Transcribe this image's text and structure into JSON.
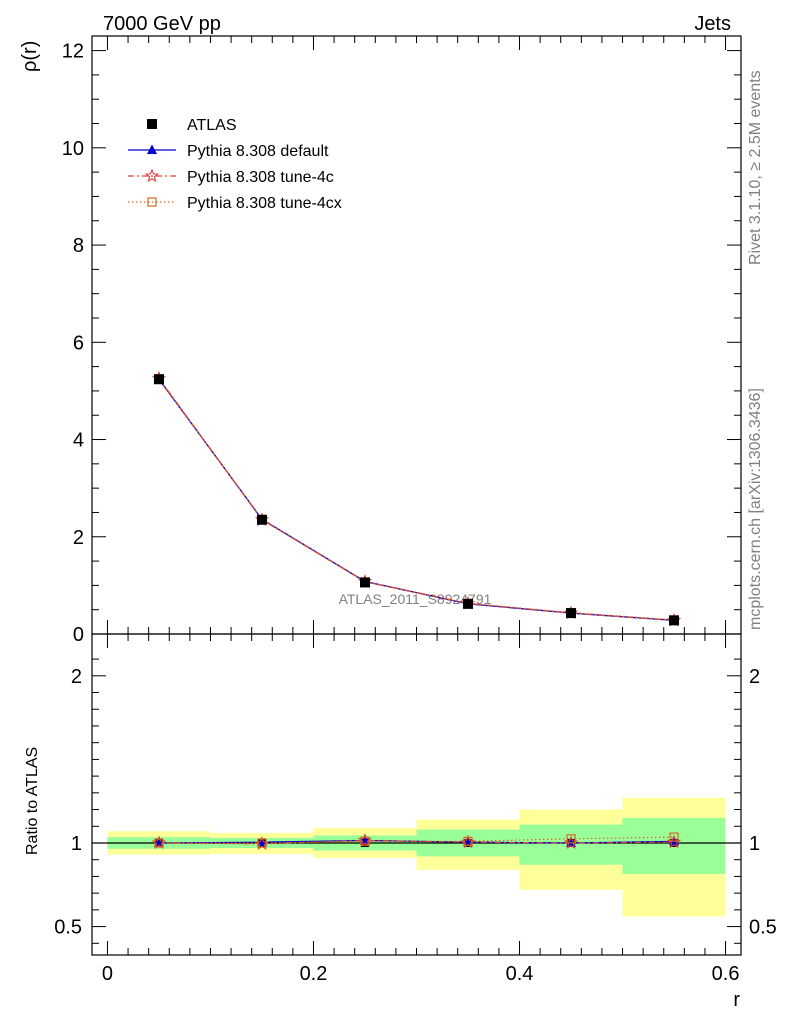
{
  "header": {
    "left": "7000 GeV pp",
    "right": "Jets"
  },
  "side": {
    "rivet": "Rivet 3.1.10, ≥ 2.5M events",
    "mcplots": "mcplots.cern.ch [arXiv:1306.3436]"
  },
  "watermark": "ATLAS_2011_S8924791",
  "chart_data": [
    {
      "type": "line",
      "panel": "main",
      "ylabel": "ρ(r)",
      "ylim": [
        0,
        12.3
      ],
      "yticks": [
        0,
        2,
        4,
        6,
        8,
        10,
        12
      ],
      "ytick_labels": [
        "0",
        "2",
        "4",
        "6",
        "8",
        "10",
        "12"
      ],
      "x": [
        0.05,
        0.15,
        0.25,
        0.35,
        0.45,
        0.55
      ],
      "series": [
        {
          "name": "ATLAS",
          "values": [
            5.24,
            2.35,
            1.06,
            0.62,
            0.43,
            0.28
          ],
          "color": "#000000",
          "marker": "square"
        },
        {
          "name": "Pythia 8.308 default",
          "values": [
            5.24,
            2.36,
            1.08,
            0.62,
            0.43,
            0.28
          ],
          "color": "#0000cc",
          "marker": "triangle"
        },
        {
          "name": "Pythia 8.308 tune-4c",
          "values": [
            5.26,
            2.35,
            1.08,
            0.63,
            0.43,
            0.28
          ],
          "color": "#e04040",
          "marker": "star"
        },
        {
          "name": "Pythia 8.308 tune-4cx",
          "values": [
            5.25,
            2.35,
            1.07,
            0.63,
            0.44,
            0.29
          ],
          "color": "#d2691e",
          "marker": "open-square"
        }
      ]
    },
    {
      "type": "line",
      "panel": "ratio",
      "xlabel": "r",
      "ylabel": "Ratio to ATLAS",
      "xlim": [
        -0.015,
        0.615
      ],
      "xticks": [
        0,
        0.2,
        0.4,
        0.6
      ],
      "xtick_labels": [
        "0",
        "0.2",
        "0.4",
        "0.6"
      ],
      "ylim": [
        0.33,
        2.25
      ],
      "yticks": [
        0.5,
        1,
        2
      ],
      "ytick_labels": [
        "0.5",
        "1",
        "2"
      ],
      "bands": {
        "bins": [
          [
            0.0,
            0.1
          ],
          [
            0.1,
            0.2
          ],
          [
            0.2,
            0.3
          ],
          [
            0.3,
            0.4
          ],
          [
            0.4,
            0.5
          ],
          [
            0.5,
            0.6
          ]
        ],
        "yellow": [
          [
            0.93,
            1.07
          ],
          [
            0.935,
            1.06
          ],
          [
            0.91,
            1.09
          ],
          [
            0.84,
            1.14
          ],
          [
            0.72,
            1.2
          ],
          [
            0.56,
            1.27
          ]
        ],
        "green": [
          [
            0.965,
            1.035
          ],
          [
            0.97,
            1.03
          ],
          [
            0.955,
            1.045
          ],
          [
            0.92,
            1.08
          ],
          [
            0.87,
            1.11
          ],
          [
            0.815,
            1.15
          ]
        ]
      },
      "series": [
        {
          "name": "Pythia 8.308 default",
          "values": [
            1.0,
            1.005,
            1.015,
            1.005,
            1.0,
            1.01
          ],
          "color": "#0000cc",
          "marker": "triangle"
        },
        {
          "name": "Pythia 8.308 tune-4c",
          "values": [
            1.0,
            0.995,
            1.015,
            1.005,
            1.0,
            1.005
          ],
          "color": "#e04040",
          "marker": "star"
        },
        {
          "name": "Pythia 8.308 tune-4cx",
          "values": [
            1.0,
            1.0,
            1.01,
            1.01,
            1.025,
            1.035
          ],
          "color": "#d2691e",
          "marker": "open-square"
        }
      ]
    }
  ]
}
